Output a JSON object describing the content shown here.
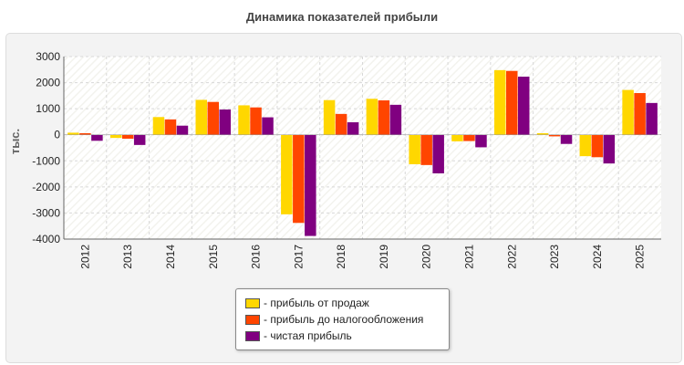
{
  "chart_data": {
    "type": "bar",
    "title": "Динамика показателей прибыли",
    "ylabel": "тыс.",
    "xlabel": "",
    "ylim": [
      -4000,
      3000
    ],
    "yticks": [
      3000,
      2000,
      1000,
      0,
      -1000,
      -2000,
      -3000,
      -4000
    ],
    "grid": true,
    "legend_position": "bottom-center",
    "categories": [
      "2012",
      "2013",
      "2014",
      "2015",
      "2016",
      "2017",
      "2018",
      "2019",
      "2020",
      "2021",
      "2022",
      "2023",
      "2024",
      "2025"
    ],
    "series": [
      {
        "name": "- прибыль от продаж",
        "color": "#FFD700",
        "values": [
          80,
          -120,
          680,
          1340,
          1130,
          -3050,
          1330,
          1380,
          -1130,
          -250,
          2480,
          60,
          -820,
          1720
        ]
      },
      {
        "name": "- прибыль до налогообложения",
        "color": "#FF4500",
        "values": [
          60,
          -150,
          590,
          1260,
          1050,
          -3380,
          800,
          1320,
          -1160,
          -240,
          2450,
          -60,
          -860,
          1600
        ]
      },
      {
        "name": "- чистая прибыль",
        "color": "#800080",
        "values": [
          -230,
          -390,
          350,
          970,
          670,
          -3880,
          480,
          1150,
          -1480,
          -480,
          2230,
          -350,
          -1100,
          1220
        ]
      }
    ]
  }
}
